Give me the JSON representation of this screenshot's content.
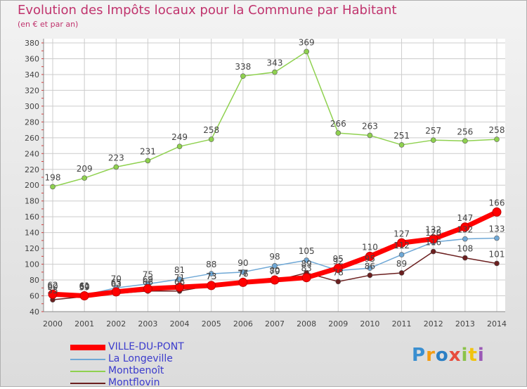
{
  "chart_data": {
    "type": "line",
    "title": "Evolution des Impôts locaux pour la Commune par Habitant",
    "subtitle": "(en € et par an)",
    "x": [
      2000,
      2001,
      2002,
      2003,
      2004,
      2005,
      2006,
      2007,
      2008,
      2009,
      2010,
      2011,
      2012,
      2013,
      2014
    ],
    "ylim": [
      40,
      380
    ],
    "yticks": [
      40,
      60,
      80,
      100,
      120,
      140,
      160,
      180,
      200,
      220,
      240,
      260,
      280,
      300,
      320,
      340,
      360,
      380
    ],
    "grid": true,
    "series": [
      {
        "name": "VILLE-DU-PONT",
        "color": "#ff0000",
        "values": [
          62,
          60,
          65,
          69,
          71,
          73,
          77,
          80,
          83,
          95,
          110,
          127,
          132,
          147,
          166
        ]
      },
      {
        "name": "La Longeville",
        "color": "#6fa8d6",
        "values": [
          60,
          61,
          70,
          75,
          81,
          88,
          90,
          98,
          105,
          92,
          95,
          112,
          128,
          132,
          133
        ]
      },
      {
        "name": "Montbenoît",
        "color": "#8fd14f",
        "values": [
          198,
          209,
          223,
          231,
          249,
          258,
          338,
          343,
          369,
          266,
          263,
          251,
          257,
          256,
          258
        ]
      },
      {
        "name": "Montflovin",
        "color": "#6b1f1f",
        "values": [
          55,
          59,
          63,
          66,
          66,
          73,
          76,
          79,
          89,
          78,
          86,
          89,
          116,
          108,
          101
        ]
      }
    ],
    "legend": "bottom-left"
  },
  "logo_text": "Proxiti"
}
